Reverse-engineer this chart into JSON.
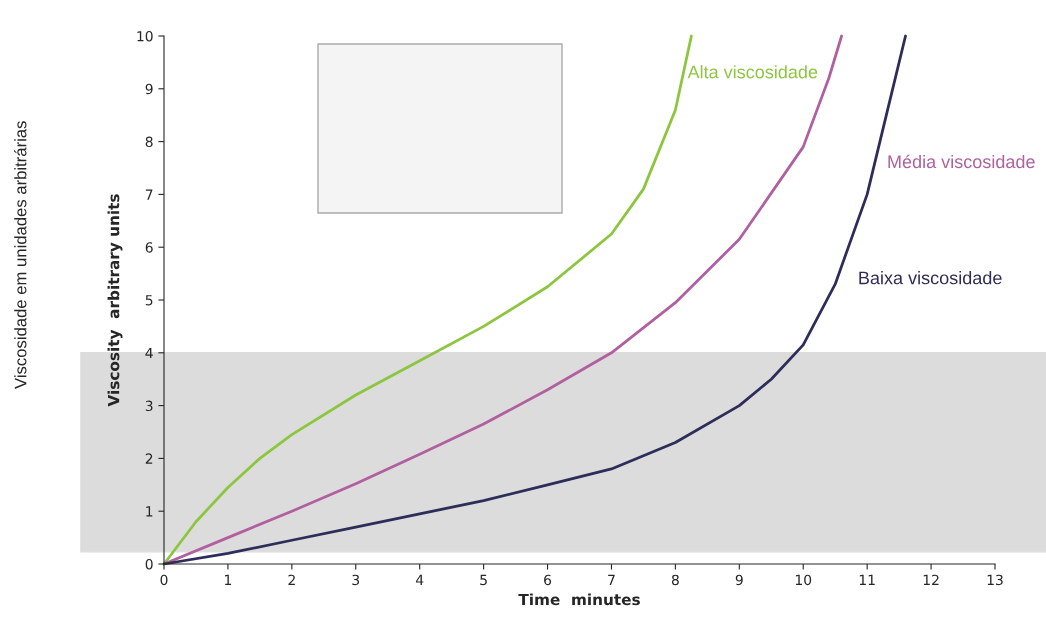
{
  "chart_data": {
    "type": "line",
    "xlabel": "Time  minutes",
    "ylabel": "Viscosity  arbitrary units",
    "annotations": [
      "Viscosidade em unidades arbitrárias"
    ],
    "xlim": [
      0,
      13
    ],
    "xticks": [
      0,
      1,
      2,
      3,
      4,
      5,
      6,
      7,
      8,
      9,
      10,
      11,
      12,
      13
    ],
    "ylim": [
      0,
      10
    ],
    "yticks": [
      0,
      1,
      2,
      3,
      4,
      5,
      6,
      7,
      8,
      9,
      10
    ],
    "grid": false,
    "legend": false,
    "marker": "none",
    "line_style": "solid",
    "bands": [
      {
        "axis": "y",
        "from": 0.23,
        "to": 4.0,
        "color": "#dcdcdc"
      }
    ],
    "series": [
      {
        "name": "Alta viscosidade",
        "color": "#8cc63f",
        "x": [
          0,
          0.5,
          1,
          1.5,
          2,
          3,
          4,
          5,
          6,
          7,
          7.5,
          8,
          8.25
        ],
        "values": [
          0,
          0.8,
          1.45,
          2.0,
          2.45,
          3.2,
          3.85,
          4.5,
          5.25,
          6.25,
          7.1,
          8.6,
          10
        ]
      },
      {
        "name": "Média viscosidade",
        "color": "#b0609e",
        "x": [
          0,
          1,
          2,
          3,
          4,
          5,
          6,
          7,
          8,
          9,
          10,
          10.4,
          10.6
        ],
        "values": [
          0,
          0.5,
          1.0,
          1.52,
          2.08,
          2.65,
          3.3,
          4.0,
          4.95,
          6.15,
          7.9,
          9.2,
          10
        ]
      },
      {
        "name": "Baixa viscosidade",
        "color": "#2e2d5a",
        "x": [
          0,
          1,
          2,
          3,
          4,
          5,
          6,
          7,
          8,
          9,
          9.5,
          10,
          10.5,
          11,
          11.3,
          11.6
        ],
        "values": [
          0,
          0.2,
          0.45,
          0.7,
          0.95,
          1.2,
          1.5,
          1.8,
          2.3,
          3.0,
          3.5,
          4.15,
          5.3,
          7.0,
          8.5,
          10
        ]
      }
    ]
  }
}
